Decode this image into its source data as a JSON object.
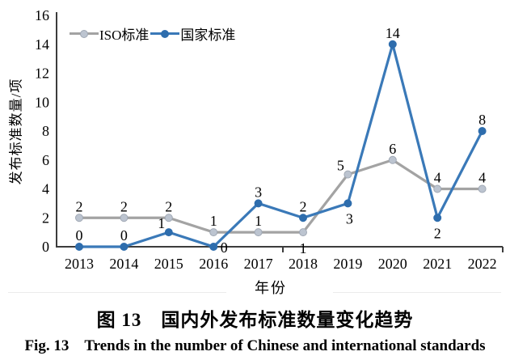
{
  "figure": {
    "caption_zh": "图 13　国内外发布标准数量变化趋势",
    "caption_en": "Fig. 13　Trends in the number of Chinese and international standards"
  },
  "chart_data": {
    "type": "line",
    "title": "",
    "xlabel": "年份",
    "ylabel": "发布标准数量/项",
    "categories": [
      "2013",
      "2014",
      "2015",
      "2016",
      "2017",
      "2018",
      "2019",
      "2020",
      "2021",
      "2022"
    ],
    "ylim": [
      0,
      16
    ],
    "ytick_step": 2,
    "grid": false,
    "legend_position": "top-left",
    "series": [
      {
        "name": "ISO标准",
        "color": "#a3a3a3",
        "marker_color": "#bcc4d0",
        "marker_stroke": "#a0a8b4",
        "values": [
          2,
          2,
          2,
          1,
          1,
          1,
          5,
          6,
          4,
          4
        ]
      },
      {
        "name": "国家标准",
        "color": "#3a79b8",
        "marker_color": "#2e6dad",
        "marker_stroke": "#2e6dad",
        "values": [
          0,
          0,
          1,
          0,
          3,
          2,
          3,
          14,
          2,
          8
        ]
      }
    ],
    "label_offsets": [
      [
        null,
        null,
        null,
        null,
        null,
        [
          0,
          26
        ],
        [
          -9,
          -5
        ],
        null,
        null,
        null
      ],
      [
        null,
        null,
        [
          -9,
          -5
        ],
        [
          13,
          7
        ],
        null,
        null,
        [
          2,
          25
        ],
        null,
        [
          0,
          25
        ],
        null
      ]
    ],
    "axis_color": "#3c3c3c",
    "text_color": "#000000"
  }
}
